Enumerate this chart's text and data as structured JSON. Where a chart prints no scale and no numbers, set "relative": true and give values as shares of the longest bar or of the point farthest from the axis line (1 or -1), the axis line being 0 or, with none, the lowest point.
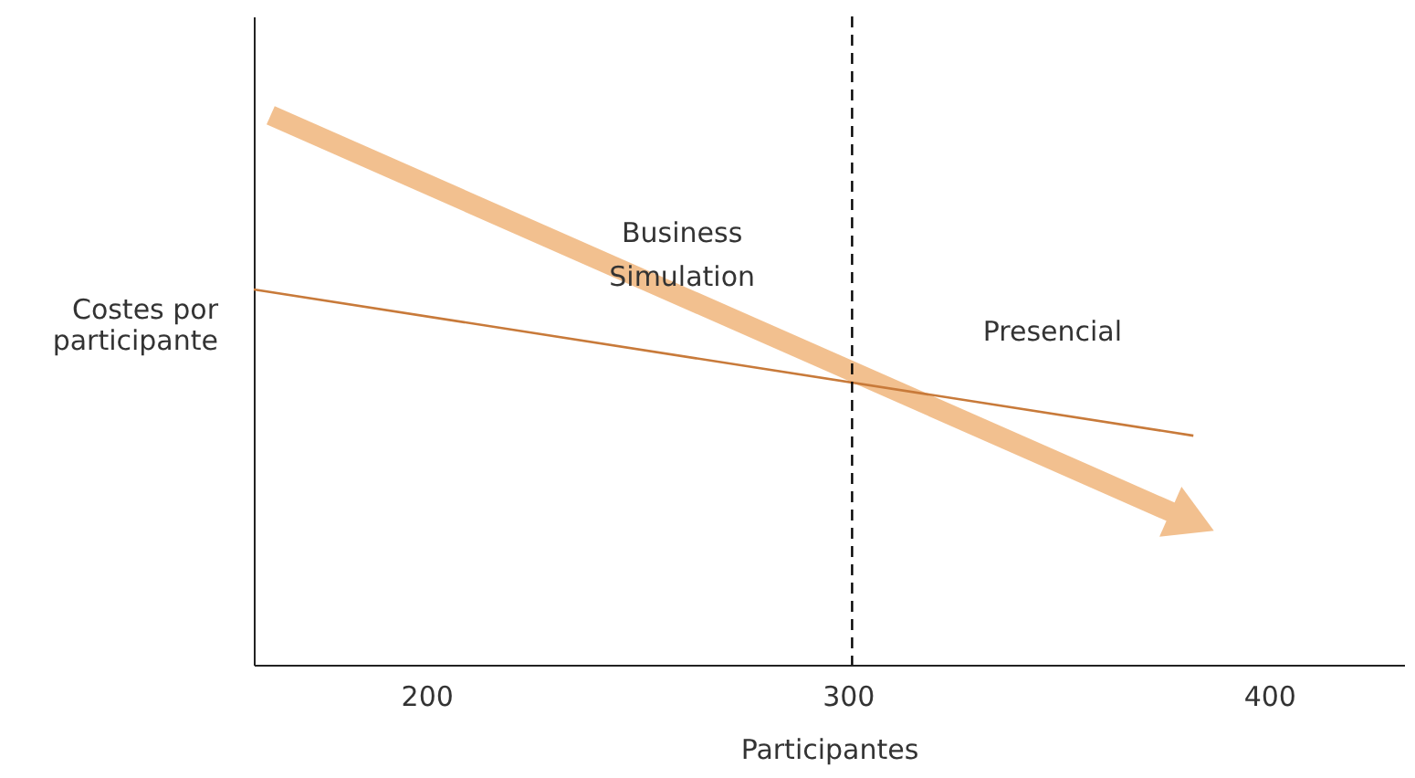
{
  "chart_data": {
    "type": "line",
    "xlabel": "Participantes",
    "ylabel": "Costes por participante",
    "relative": true,
    "xlim": [
      159,
      432
    ],
    "xticks": [
      200,
      300,
      400
    ],
    "grid": false,
    "legend": false,
    "line_style": "solid",
    "series": [
      {
        "name": "Business Simulation",
        "color": "#f2c08f",
        "x": [
          163,
          380
        ],
        "values": [
          1,
          0.267
        ]
      },
      {
        "name": "Presencial",
        "color": "#c87a3a",
        "x": [
          159,
          382
        ],
        "values": [
          0.683,
          0.417
        ]
      }
    ],
    "ref_lines": [
      {
        "axis": "x",
        "value": 301,
        "line_style": "dashed",
        "color": "#000000"
      }
    ]
  }
}
